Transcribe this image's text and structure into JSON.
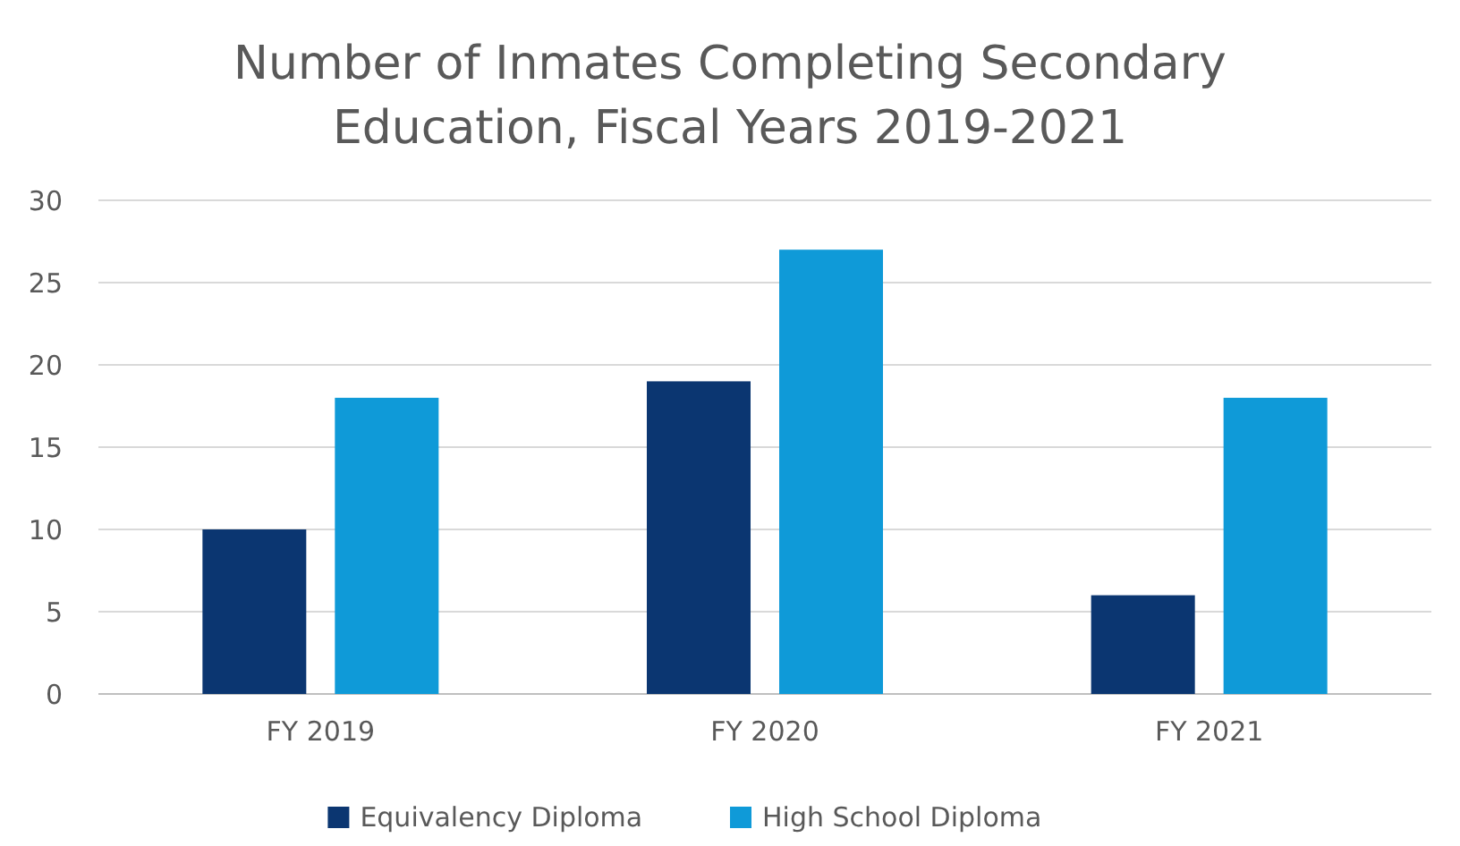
{
  "chart_data": {
    "type": "bar",
    "title": "Number of Inmates Completing Secondary Education, Fiscal Years 2019-2021",
    "categories": [
      "FY 2019",
      "FY 2020",
      "FY 2021"
    ],
    "series": [
      {
        "name": "Equivalency Diploma",
        "color": "#0b3671",
        "values": [
          10,
          19,
          6
        ]
      },
      {
        "name": "High School Diploma",
        "color": "#0f9ad8",
        "values": [
          18,
          27,
          18
        ]
      }
    ],
    "ylim": [
      0,
      30
    ],
    "yticks": [
      0,
      5,
      10,
      15,
      20,
      25,
      30
    ],
    "grid": "y",
    "legend": "bottom"
  }
}
